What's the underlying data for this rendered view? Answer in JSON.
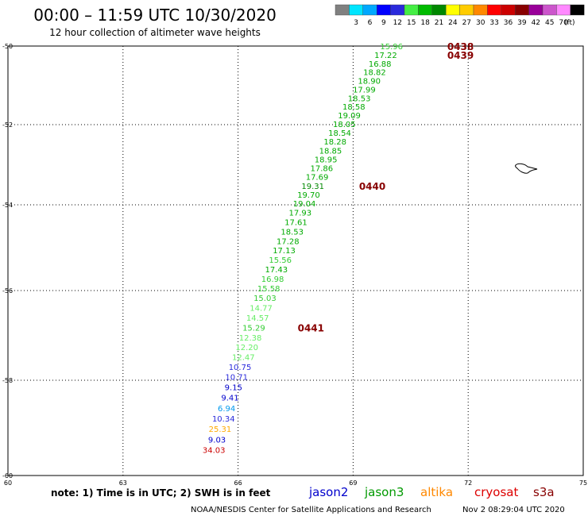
{
  "header": {
    "title": "00:00 – 11:59 UTC 10/30/2020",
    "subtitle": "12 hour collection of altimeter wave heights",
    "legend_unit": "(ft)"
  },
  "color_scale": [
    {
      "label": "",
      "color": "#808080"
    },
    {
      "label": "3",
      "color": "#00e5ff"
    },
    {
      "label": "6",
      "color": "#00a8ff"
    },
    {
      "label": "9",
      "color": "#0000ff"
    },
    {
      "label": "12",
      "color": "#2a2adc"
    },
    {
      "label": "15",
      "color": "#44ee44"
    },
    {
      "label": "18",
      "color": "#00bb00"
    },
    {
      "label": "21",
      "color": "#008800"
    },
    {
      "label": "24",
      "color": "#ffff00"
    },
    {
      "label": "27",
      "color": "#ffcc00"
    },
    {
      "label": "30",
      "color": "#ff8800"
    },
    {
      "label": "33",
      "color": "#ff0000"
    },
    {
      "label": "36",
      "color": "#cc0000"
    },
    {
      "label": "39",
      "color": "#880000"
    },
    {
      "label": "42",
      "color": "#990099"
    },
    {
      "label": "45",
      "color": "#cc55cc"
    },
    {
      "label": "70",
      "color": "#ff88ff"
    },
    {
      "label": "",
      "color": "#000000"
    }
  ],
  "footer": {
    "note": "note: 1) Time is in UTC; 2) SWH is in feet",
    "credit": "NOAA/NESDIS Center for Satellite Applications and Research",
    "timestamp": "Nov  2 08:29:04 UTC 2020",
    "satellites": [
      {
        "name": "jason2",
        "color": "#0000cc"
      },
      {
        "name": "jason3",
        "color": "#009900"
      },
      {
        "name": "altika",
        "color": "#ff8800"
      },
      {
        "name": "cryosat",
        "color": "#dd0000"
      },
      {
        "name": "s3a",
        "color": "#880000"
      }
    ]
  },
  "chart_data": {
    "type": "scatter",
    "title": "00:00 – 11:59 UTC 10/30/2020",
    "xlim": [
      60,
      75
    ],
    "ylim": [
      -60,
      -50
    ],
    "x_ticks": [
      60,
      63,
      66,
      69,
      72,
      75
    ],
    "y_ticks": [
      -50,
      -52,
      -54,
      -56,
      -58,
      -60
    ],
    "grid": true,
    "points": [
      {
        "lon": 70.0,
        "lat": -50.0,
        "swh": "15.96",
        "color": "#33cc33"
      },
      {
        "lon": 69.85,
        "lat": -50.22,
        "swh": "17.22",
        "color": "#00aa00"
      },
      {
        "lon": 69.7,
        "lat": -50.44,
        "swh": "16.88",
        "color": "#00aa00"
      },
      {
        "lon": 69.56,
        "lat": -50.66,
        "swh": "18.82",
        "color": "#00aa00"
      },
      {
        "lon": 69.42,
        "lat": -50.88,
        "swh": "18.90",
        "color": "#00aa00"
      },
      {
        "lon": 69.29,
        "lat": -51.1,
        "swh": "17.99",
        "color": "#00aa00"
      },
      {
        "lon": 69.16,
        "lat": -51.32,
        "swh": "18.53",
        "color": "#00aa00"
      },
      {
        "lon": 69.02,
        "lat": -51.54,
        "swh": "18.58",
        "color": "#00aa00"
      },
      {
        "lon": 68.9,
        "lat": -51.76,
        "swh": "19.09",
        "color": "#00aa00"
      },
      {
        "lon": 68.77,
        "lat": -51.98,
        "swh": "18.05",
        "color": "#00aa00"
      },
      {
        "lon": 68.65,
        "lat": -52.2,
        "swh": "18.54",
        "color": "#00aa00"
      },
      {
        "lon": 68.53,
        "lat": -52.42,
        "swh": "18.28",
        "color": "#00aa00"
      },
      {
        "lon": 68.41,
        "lat": -52.64,
        "swh": "18.85",
        "color": "#00aa00"
      },
      {
        "lon": 68.29,
        "lat": -52.86,
        "swh": "18.95",
        "color": "#00aa00"
      },
      {
        "lon": 68.18,
        "lat": -53.08,
        "swh": "17.86",
        "color": "#00aa00"
      },
      {
        "lon": 68.06,
        "lat": -53.3,
        "swh": "17.69",
        "color": "#00aa00"
      },
      {
        "lon": 67.95,
        "lat": -53.52,
        "swh": "19.31",
        "color": "#008800"
      },
      {
        "lon": 67.84,
        "lat": -53.74,
        "swh": "19.70",
        "color": "#00aa00"
      },
      {
        "lon": 67.73,
        "lat": -53.96,
        "swh": "19.04",
        "color": "#00aa00"
      },
      {
        "lon": 67.62,
        "lat": -54.18,
        "swh": "17.93",
        "color": "#00aa00"
      },
      {
        "lon": 67.51,
        "lat": -54.4,
        "swh": "17.61",
        "color": "#00aa00"
      },
      {
        "lon": 67.41,
        "lat": -54.62,
        "swh": "18.53",
        "color": "#00aa00"
      },
      {
        "lon": 67.3,
        "lat": -54.84,
        "swh": "17.28",
        "color": "#00aa00"
      },
      {
        "lon": 67.2,
        "lat": -55.06,
        "swh": "17.13",
        "color": "#00aa00"
      },
      {
        "lon": 67.1,
        "lat": -55.28,
        "swh": "15.56",
        "color": "#33cc33"
      },
      {
        "lon": 67.0,
        "lat": -55.5,
        "swh": "17.43",
        "color": "#00aa00"
      },
      {
        "lon": 66.9,
        "lat": -55.72,
        "swh": "16.98",
        "color": "#33cc33"
      },
      {
        "lon": 66.8,
        "lat": -55.94,
        "swh": "15.58",
        "color": "#33cc33"
      },
      {
        "lon": 66.7,
        "lat": -56.16,
        "swh": "15.03",
        "color": "#33cc33"
      },
      {
        "lon": 66.6,
        "lat": -56.38,
        "swh": "14.77",
        "color": "#66ee66"
      },
      {
        "lon": 66.51,
        "lat": -56.6,
        "swh": "14.57",
        "color": "#66ee66"
      },
      {
        "lon": 66.41,
        "lat": -56.82,
        "swh": "15.29",
        "color": "#33cc33"
      },
      {
        "lon": 66.32,
        "lat": -57.04,
        "swh": "12.38",
        "color": "#66ee66"
      },
      {
        "lon": 66.23,
        "lat": -57.26,
        "swh": "12.20",
        "color": "#66ee66"
      },
      {
        "lon": 66.14,
        "lat": -57.48,
        "swh": "12.47",
        "color": "#66ee66"
      },
      {
        "lon": 66.05,
        "lat": -57.7,
        "swh": "10.75",
        "color": "#2a2adc"
      },
      {
        "lon": 65.96,
        "lat": -57.92,
        "swh": "10.71",
        "color": "#2a2adc"
      },
      {
        "lon": 65.88,
        "lat": -58.14,
        "swh": "9.15",
        "color": "#0000cc"
      },
      {
        "lon": 65.79,
        "lat": -58.36,
        "swh": "9.41",
        "color": "#0000cc"
      },
      {
        "lon": 65.7,
        "lat": -58.58,
        "swh": "6.94",
        "color": "#0099ee"
      },
      {
        "lon": 65.62,
        "lat": -58.8,
        "swh": "10.34",
        "color": "#2a2adc"
      },
      {
        "lon": 65.53,
        "lat": -59.02,
        "swh": "25.31",
        "color": "#ffaa00"
      },
      {
        "lon": 65.45,
        "lat": -59.24,
        "swh": "9.03",
        "color": "#0000cc"
      },
      {
        "lon": 65.37,
        "lat": -59.46,
        "swh": "34.03",
        "color": "#cc0000"
      }
    ],
    "time_labels": [
      {
        "text": "0438",
        "lon": 71.8,
        "lat": -50.0
      },
      {
        "text": "0439",
        "lon": 71.8,
        "lat": -50.22
      },
      {
        "text": "0440",
        "lon": 69.5,
        "lat": -53.52
      },
      {
        "text": "0441",
        "lon": 67.9,
        "lat": -56.82
      }
    ]
  }
}
